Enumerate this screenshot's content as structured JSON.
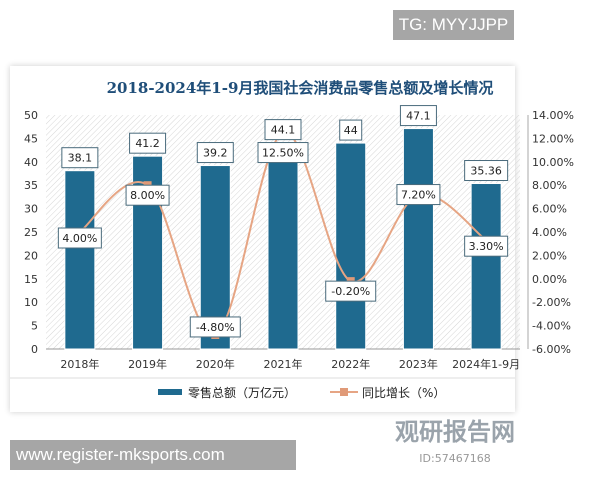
{
  "banners": {
    "top": "TG: MYYJJPP",
    "bottom": "www.register-mksports.com"
  },
  "watermark": {
    "brand": "观研报告网",
    "id": "ID:57467168"
  },
  "chart_data": {
    "type": "bar+line",
    "title": "2018-2024年1-9月我国社会消费品零售总额及增长情况",
    "categories": [
      "2018年",
      "2019年",
      "2020年",
      "2021年",
      "2022年",
      "2023年",
      "2024年1-9月"
    ],
    "series": [
      {
        "name": "零售总额（万亿元）",
        "type": "bar",
        "axis": "left",
        "values": [
          38.1,
          41.2,
          39.2,
          44.1,
          44,
          47.1,
          35.36
        ],
        "labels": [
          "38.1",
          "41.2",
          "39.2",
          "44.1",
          "44",
          "47.1",
          "35.36"
        ],
        "color": "#1f6a8f"
      },
      {
        "name": "同比增长（%）",
        "type": "line",
        "axis": "right",
        "values": [
          4.0,
          8.0,
          -4.8,
          12.5,
          -0.2,
          7.2,
          3.3
        ],
        "labels": [
          "4.00%",
          "8.00%",
          "-4.80%",
          "12.50%",
          "-0.20%",
          "7.20%",
          "3.30%"
        ],
        "color": "#e6a584"
      }
    ],
    "left_axis": {
      "range": [
        0,
        50
      ],
      "ticks": [
        "0",
        "5",
        "10",
        "15",
        "20",
        "25",
        "30",
        "35",
        "40",
        "45",
        "50"
      ]
    },
    "right_axis": {
      "range": [
        -6,
        14
      ],
      "ticks": [
        "-6.00%",
        "-4.00%",
        "-2.00%",
        "0.00%",
        "2.00%",
        "4.00%",
        "6.00%",
        "8.00%",
        "10.00%",
        "12.00%",
        "14.00%"
      ]
    },
    "legend": "bottom"
  }
}
